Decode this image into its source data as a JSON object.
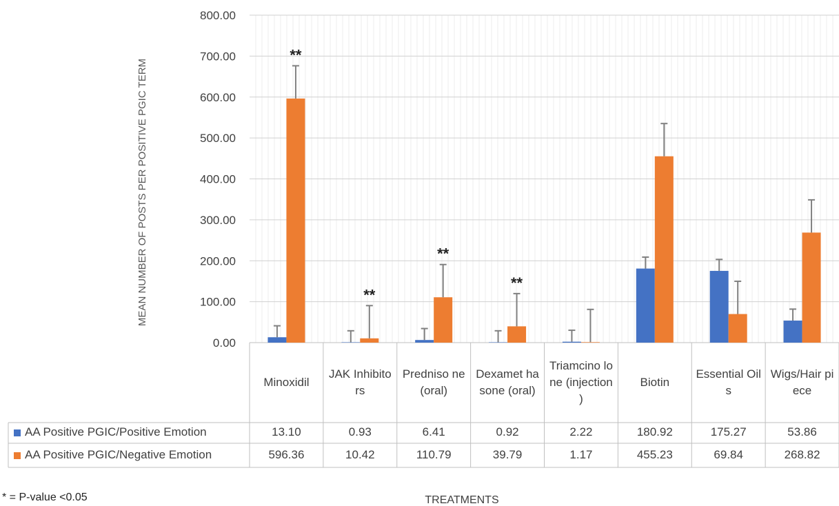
{
  "chart_data": {
    "type": "bar",
    "ylabel": "MEAN NUMBER OF POSTS PER POSITIVE PGIC TERM",
    "xlabel": "TREATMENTS",
    "ylim": [
      0,
      800
    ],
    "y_ticks": [
      "0.00",
      "100.00",
      "200.00",
      "300.00",
      "400.00",
      "500.00",
      "600.00",
      "700.00",
      "800.00"
    ],
    "grid": true,
    "legend_placement": "data table",
    "categories": [
      "Minoxidil",
      "JAK Inhibitors",
      "Predniso ne (oral)",
      "Dexamet hasone (oral)",
      "Triamcino lone (injection )",
      "Biotin",
      "Essential Oils",
      "Wigs/Hair piece"
    ],
    "series": [
      {
        "name": "AA Positive PGIC/Positive Emotion",
        "color": "#4472C4",
        "values": [
          13.1,
          0.93,
          6.41,
          0.92,
          2.22,
          180.92,
          175.27,
          53.86
        ],
        "value_labels": [
          "13.10",
          "0.93",
          "6.41",
          "0.92",
          "2.22",
          "180.92",
          "175.27",
          "53.86"
        ],
        "error_upper": [
          28,
          28,
          28,
          28,
          28,
          28,
          28,
          28
        ]
      },
      {
        "name": "AA Positive PGIC/Negative Emotion",
        "color": "#ED7D31",
        "values": [
          596.36,
          10.42,
          110.79,
          39.79,
          1.17,
          455.23,
          69.84,
          268.82
        ],
        "value_labels": [
          "596.36",
          "10.42",
          "110.79",
          "39.79",
          "1.17",
          "455.23",
          "69.84",
          "268.82"
        ],
        "error_upper": [
          80,
          80,
          80,
          80,
          80,
          80,
          80,
          80
        ]
      }
    ],
    "significance_marks": [
      "**",
      "**",
      "**",
      "**",
      "",
      "",
      "",
      ""
    ],
    "footnote": "* = P-value <0.05"
  }
}
